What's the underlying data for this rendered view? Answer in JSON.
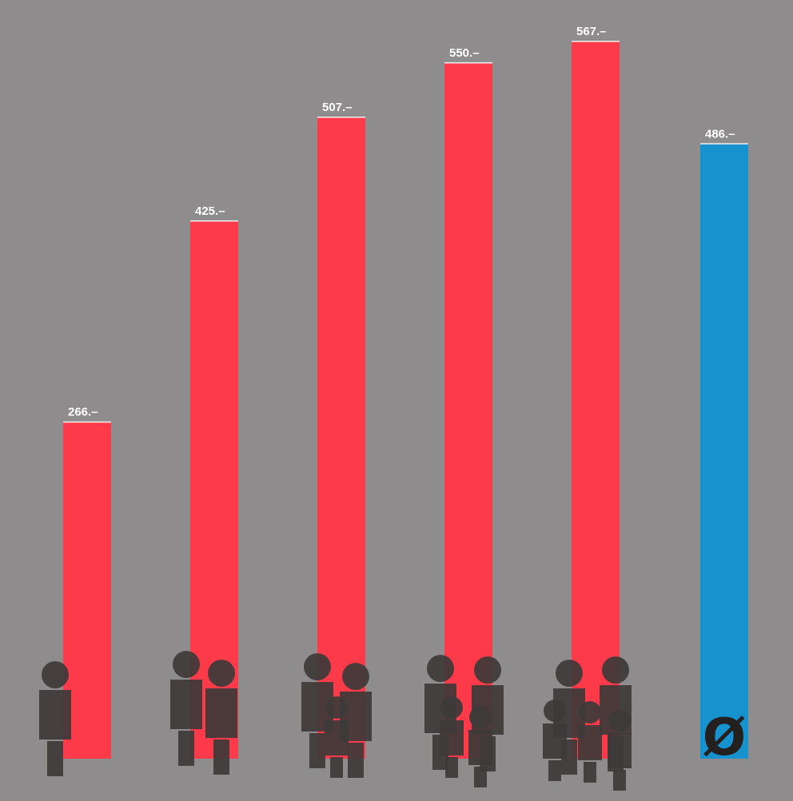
{
  "chart_data": {
    "type": "bar",
    "title": "",
    "xlabel": "",
    "ylabel": "",
    "categories": [
      "1 person",
      "2 persons",
      "3 persons",
      "4 persons",
      "5 persons",
      "average"
    ],
    "values": [
      266,
      425,
      507,
      550,
      567,
      486
    ],
    "value_labels": [
      "266.–",
      "425.–",
      "507.–",
      "550.–",
      "567.–",
      "486.–"
    ],
    "people_counts": [
      1,
      2,
      3,
      4,
      5,
      0
    ],
    "average_symbol": "Ø",
    "ylim": [
      0,
      600
    ],
    "grid": false,
    "legend": "none",
    "colors": {
      "background": "#8e8c8c",
      "bar": "#fd3a4a",
      "average_bar": "#1692cf",
      "figures": "#3e3a3a",
      "labels": "#ffffff"
    }
  }
}
